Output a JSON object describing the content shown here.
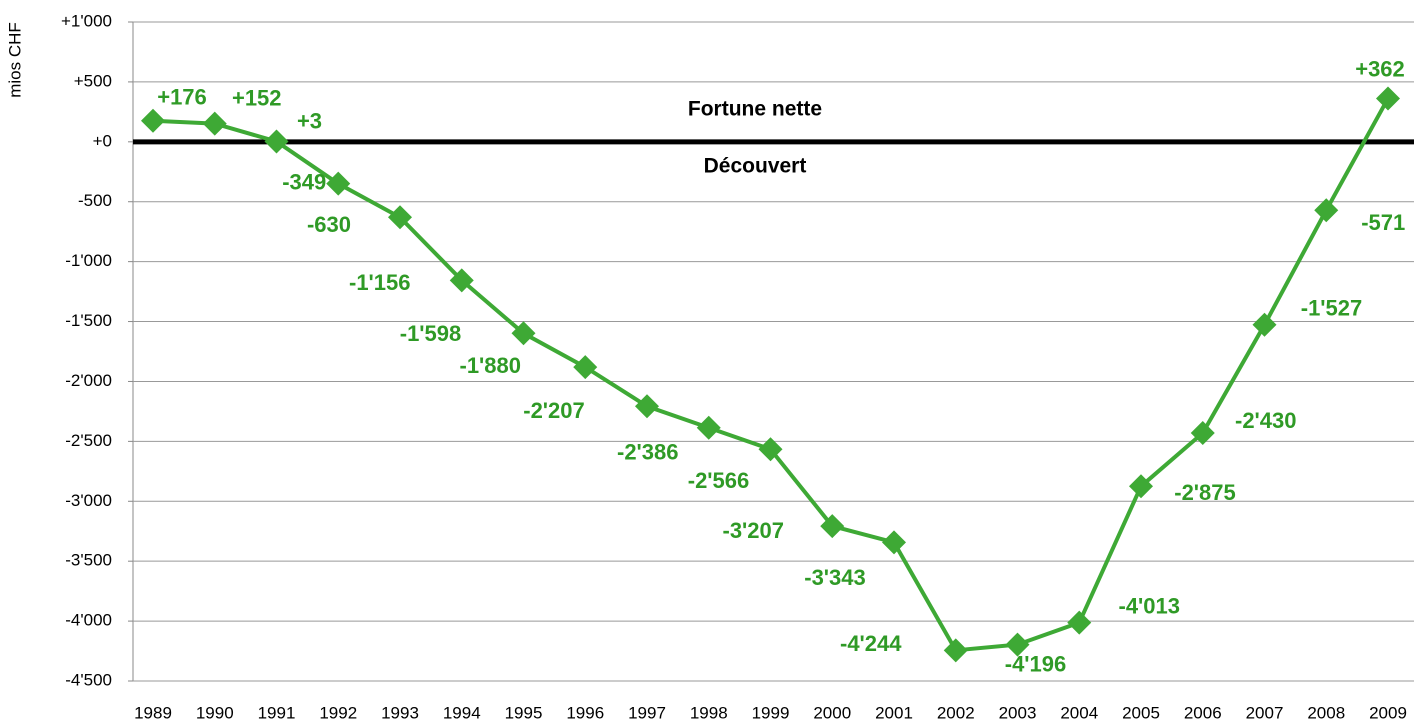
{
  "chart_data": {
    "type": "line",
    "y_label": "mios CHF",
    "annotations": [
      "Fortune nette",
      "Découvert"
    ],
    "categories": [
      "1989",
      "1990",
      "1991",
      "1992",
      "1993",
      "1994",
      "1995",
      "1996",
      "1997",
      "1998",
      "1999",
      "2000",
      "2001",
      "2002",
      "2003",
      "2004",
      "2005",
      "2006",
      "2007",
      "2008",
      "2009"
    ],
    "series": [
      {
        "name": "Fortune nette",
        "color": "#3ea935",
        "values": [
          176,
          152,
          3,
          -349,
          -630,
          -1156,
          -1598,
          -1880,
          -2207,
          -2386,
          -2566,
          -3207,
          -3343,
          -4244,
          -4196,
          -4013,
          -2875,
          -2430,
          -1527,
          -571,
          362
        ],
        "value_labels": [
          "+176",
          "+152",
          "+3",
          "-349",
          "-630",
          "-1'156",
          "-1'598",
          "-1'880",
          "-2'207",
          "-2'386",
          "-2'566",
          "-3'207",
          "-3'343",
          "-4'244",
          "-4'196",
          "-4'013",
          "-2'875",
          "-2'430",
          "-1'527",
          "-571",
          "+362"
        ]
      }
    ],
    "ylim": [
      -4500,
      1000
    ],
    "yticks": [
      {
        "value": 1000,
        "label": "+1'000"
      },
      {
        "value": 500,
        "label": "+500"
      },
      {
        "value": 0,
        "label": "+0"
      },
      {
        "value": -500,
        "label": "-500"
      },
      {
        "value": -1000,
        "label": "-1'000"
      },
      {
        "value": -1500,
        "label": "-1'500"
      },
      {
        "value": -2000,
        "label": "-2'000"
      },
      {
        "value": -2500,
        "label": "-2'500"
      },
      {
        "value": -3000,
        "label": "-3'000"
      },
      {
        "value": -3500,
        "label": "-3'500"
      },
      {
        "value": -4000,
        "label": "-4'000"
      },
      {
        "value": -4500,
        "label": "-4'500"
      }
    ],
    "grid": true
  }
}
